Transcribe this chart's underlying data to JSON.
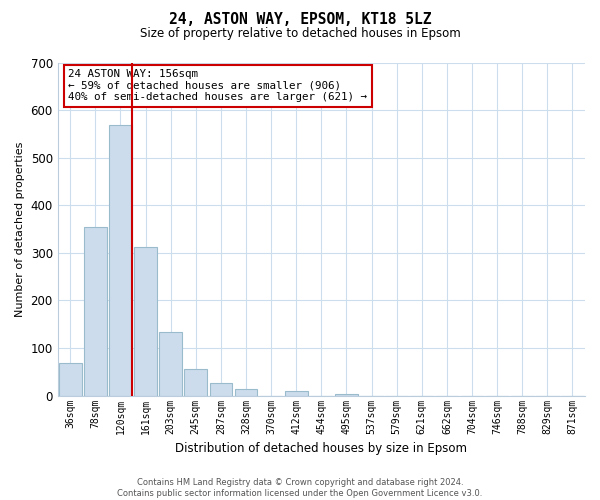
{
  "title": "24, ASTON WAY, EPSOM, KT18 5LZ",
  "subtitle": "Size of property relative to detached houses in Epsom",
  "xlabel": "Distribution of detached houses by size in Epsom",
  "ylabel": "Number of detached properties",
  "bar_labels": [
    "36sqm",
    "78sqm",
    "120sqm",
    "161sqm",
    "203sqm",
    "245sqm",
    "287sqm",
    "328sqm",
    "370sqm",
    "412sqm",
    "454sqm",
    "495sqm",
    "537sqm",
    "579sqm",
    "621sqm",
    "662sqm",
    "704sqm",
    "746sqm",
    "788sqm",
    "829sqm",
    "871sqm"
  ],
  "bar_values": [
    68,
    355,
    568,
    313,
    133,
    57,
    27,
    13,
    0,
    10,
    0,
    3,
    0,
    0,
    0,
    0,
    0,
    0,
    0,
    0,
    0
  ],
  "bar_color": "#ccdcec",
  "bar_edge_color": "#99bbcc",
  "vline_color": "#cc0000",
  "ylim": [
    0,
    700
  ],
  "yticks": [
    0,
    100,
    200,
    300,
    400,
    500,
    600,
    700
  ],
  "annotation_title": "24 ASTON WAY: 156sqm",
  "annotation_line1": "← 59% of detached houses are smaller (906)",
  "annotation_line2": "40% of semi-detached houses are larger (621) →",
  "annotation_box_color": "#ffffff",
  "annotation_box_edge": "#cc0000",
  "footer_line1": "Contains HM Land Registry data © Crown copyright and database right 2024.",
  "footer_line2": "Contains public sector information licensed under the Open Government Licence v3.0.",
  "background_color": "#ffffff",
  "grid_color": "#ccddee"
}
